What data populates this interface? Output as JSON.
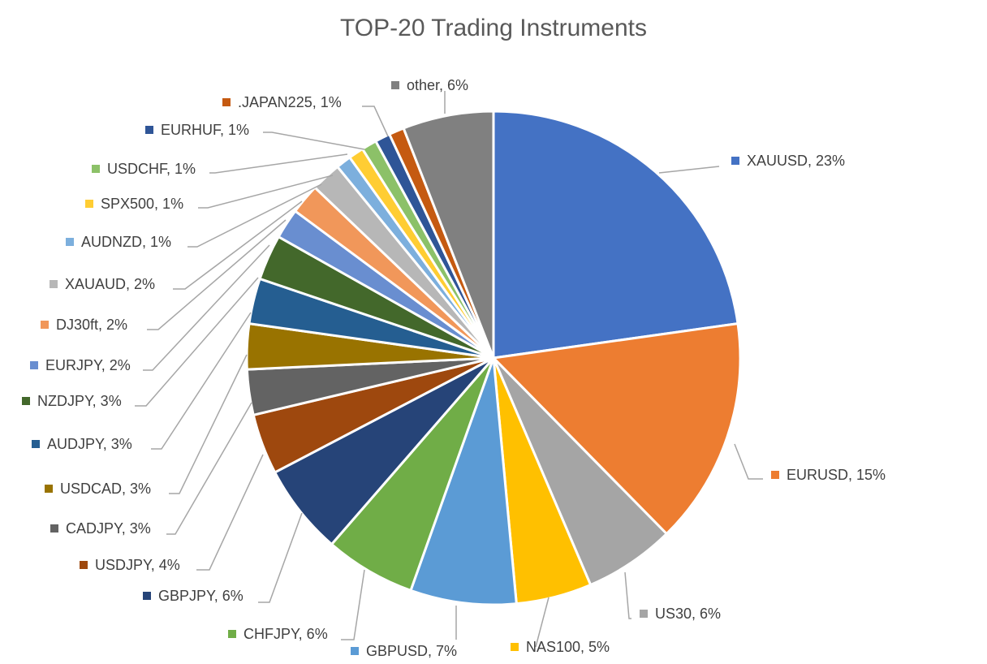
{
  "chart_data": {
    "type": "pie",
    "title": "TOP-20 Trading Instruments",
    "label_format": "category, percent",
    "slices": [
      {
        "name": "XAUUSD",
        "value": 23,
        "label": "XAUUSD, 23%",
        "color": "#4472C4"
      },
      {
        "name": "EURUSD",
        "value": 15,
        "label": "EURUSD, 15%",
        "color": "#ED7D31"
      },
      {
        "name": "US30",
        "value": 6,
        "label": "US30, 6%",
        "color": "#A5A5A5"
      },
      {
        "name": "NAS100",
        "value": 5,
        "label": "NAS100, 5%",
        "color": "#FFC000"
      },
      {
        "name": "GBPUSD",
        "value": 7,
        "label": "GBPUSD, 7%",
        "color": "#5B9BD5"
      },
      {
        "name": "CHFJPY",
        "value": 6,
        "label": "CHFJPY, 6%",
        "color": "#70AD47"
      },
      {
        "name": "GBPJPY",
        "value": 6,
        "label": "GBPJPY, 6%",
        "color": "#264478"
      },
      {
        "name": "USDJPY",
        "value": 4,
        "label": "USDJPY, 4%",
        "color": "#9E480E"
      },
      {
        "name": "CADJPY",
        "value": 3,
        "label": "CADJPY, 3%",
        "color": "#636363"
      },
      {
        "name": "USDCAD",
        "value": 3,
        "label": "USDCAD, 3%",
        "color": "#997300"
      },
      {
        "name": "AUDJPY",
        "value": 3,
        "label": "AUDJPY, 3%",
        "color": "#255E91"
      },
      {
        "name": "NZDJPY",
        "value": 3,
        "label": "NZDJPY, 3%",
        "color": "#43682B"
      },
      {
        "name": "EURJPY",
        "value": 2,
        "label": "EURJPY, 2%",
        "color": "#698ED0"
      },
      {
        "name": "DJ30ft",
        "value": 2,
        "label": "DJ30ft, 2%",
        "color": "#F1975A"
      },
      {
        "name": "XAUAUD",
        "value": 2,
        "label": "XAUAUD, 2%",
        "color": "#B7B7B7"
      },
      {
        "name": "AUDNZD",
        "value": 1,
        "label": "AUDNZD, 1%",
        "color": "#7CAFDD"
      },
      {
        "name": "SPX500",
        "value": 1,
        "label": "SPX500, 1%",
        "color": "#FFCD33"
      },
      {
        "name": "USDCHF",
        "value": 1,
        "label": "USDCHF, 1%",
        "color": "#8CC168"
      },
      {
        "name": "EURHUF",
        "value": 1,
        "label": "EURHUF, 1%",
        "color": "#2F5597"
      },
      {
        "name": ".JAPAN225",
        "value": 1,
        "label": ".JAPAN225, 1%",
        "color": "#C55A11"
      },
      {
        "name": "other",
        "value": 6,
        "label": "other, 6%",
        "color": "#808080"
      }
    ]
  }
}
